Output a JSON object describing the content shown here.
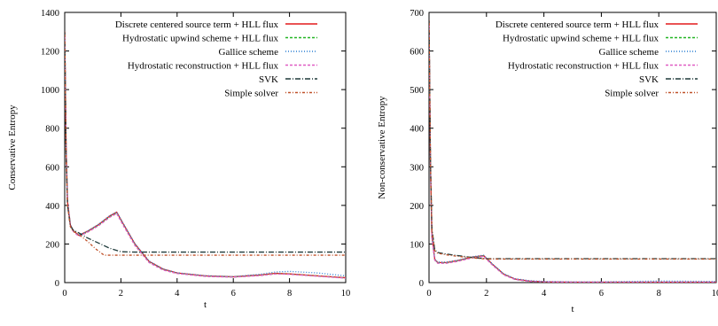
{
  "chart_data": [
    {
      "type": "line",
      "title": "",
      "xlabel": "t",
      "ylabel": "Conservative Entropy",
      "xlim": [
        0,
        10
      ],
      "ylim": [
        0,
        1400
      ],
      "xticks": [
        0,
        2,
        4,
        6,
        8,
        10
      ],
      "yticks": [
        0,
        200,
        400,
        600,
        800,
        1000,
        1200,
        1400
      ],
      "legend_position": "top-right",
      "grid": false,
      "series": [
        {
          "name": "Discrete centered source term + HLL flux",
          "color": "#e41a1c",
          "dash": "solid",
          "x": [
            0,
            0.05,
            0.1,
            0.2,
            0.3,
            0.5,
            0.8,
            1.2,
            1.6,
            1.85,
            2.1,
            2.5,
            3.0,
            3.5,
            4.0,
            5.0,
            6.0,
            7.0,
            7.5,
            8.0,
            9.0,
            10.0
          ],
          "y": [
            1300,
            700,
            420,
            300,
            270,
            245,
            265,
            300,
            345,
            365,
            300,
            200,
            110,
            70,
            50,
            35,
            30,
            40,
            48,
            45,
            35,
            25
          ]
        },
        {
          "name": "Hydrostatic upwind scheme + HLL flux",
          "color": "#22b522",
          "dash": "3,2",
          "x": [
            0,
            0.05,
            0.1,
            0.2,
            0.3,
            0.5,
            0.8,
            1.2,
            1.6,
            1.85,
            2.1,
            2.5,
            3.0,
            3.5,
            4.0,
            5.0,
            6.0,
            7.0,
            7.5,
            8.0,
            9.0,
            10.0
          ],
          "y": [
            1300,
            700,
            420,
            300,
            268,
            242,
            262,
            296,
            340,
            360,
            295,
            195,
            106,
            67,
            48,
            33,
            29,
            38,
            46,
            44,
            34,
            24
          ]
        },
        {
          "name": "Gallice scheme",
          "color": "#2a7fd4",
          "dash": "1,2",
          "x": [
            0,
            0.05,
            0.1,
            0.2,
            0.3,
            0.5,
            0.8,
            1.2,
            1.6,
            1.85,
            2.1,
            2.5,
            3.0,
            3.5,
            4.0,
            5.0,
            6.0,
            7.0,
            7.5,
            8.0,
            9.0,
            10.0
          ],
          "y": [
            1300,
            700,
            420,
            300,
            270,
            246,
            266,
            302,
            347,
            366,
            303,
            202,
            112,
            71,
            51,
            36,
            31,
            44,
            55,
            58,
            50,
            35
          ]
        },
        {
          "name": "Hydrostatic reconstruction + HLL flux",
          "color": "#e05cc4",
          "dash": "3,2",
          "x": [
            0,
            0.05,
            0.1,
            0.2,
            0.3,
            0.5,
            0.8,
            1.2,
            1.6,
            1.85,
            2.1,
            2.5,
            3.0,
            3.5,
            4.0,
            5.0,
            6.0,
            7.0,
            7.5,
            8.0,
            9.0,
            10.0
          ],
          "y": [
            1300,
            700,
            420,
            300,
            266,
            240,
            260,
            294,
            338,
            358,
            292,
            192,
            104,
            65,
            47,
            32,
            28,
            37,
            45,
            43,
            33,
            23
          ]
        },
        {
          "name": "SVK",
          "color": "#1e3a3a",
          "dash": "6,2,1,2",
          "x": [
            0,
            0.05,
            0.1,
            0.2,
            0.3,
            0.5,
            0.8,
            1.2,
            1.6,
            2.0,
            2.5,
            4.0,
            10.0
          ],
          "y": [
            1300,
            650,
            400,
            295,
            272,
            258,
            232,
            205,
            178,
            160,
            158,
            158,
            158
          ]
        },
        {
          "name": "Simple solver",
          "color": "#c0522a",
          "dash": "1,2,3,2",
          "x": [
            0,
            0.05,
            0.1,
            0.2,
            0.3,
            0.5,
            0.8,
            1.1,
            1.4,
            2.0,
            4.0,
            10.0
          ],
          "y": [
            1300,
            650,
            400,
            290,
            265,
            250,
            215,
            175,
            142,
            142,
            142,
            142
          ]
        }
      ]
    },
    {
      "type": "line",
      "title": "",
      "xlabel": "t",
      "ylabel": "Non-conservative Entropy",
      "xlim": [
        0,
        10
      ],
      "ylim": [
        0,
        700
      ],
      "xticks": [
        0,
        2,
        4,
        6,
        8,
        10
      ],
      "yticks": [
        0,
        100,
        200,
        300,
        400,
        500,
        600,
        700
      ],
      "legend_position": "top-right",
      "grid": false,
      "series": [
        {
          "name": "Discrete centered source term + HLL flux",
          "color": "#e41a1c",
          "dash": "solid",
          "x": [
            0,
            0.05,
            0.1,
            0.2,
            0.3,
            0.6,
            1.0,
            1.5,
            1.9,
            2.2,
            2.6,
            3.0,
            3.5,
            4.0,
            5.0,
            6.0,
            8.0,
            10.0
          ],
          "y": [
            680,
            300,
            120,
            60,
            52,
            52,
            57,
            66,
            70,
            48,
            22,
            9,
            4,
            2,
            1,
            1,
            1,
            1
          ]
        },
        {
          "name": "Hydrostatic upwind scheme + HLL flux",
          "color": "#22b522",
          "dash": "3,2",
          "x": [
            0,
            0.05,
            0.1,
            0.2,
            0.3,
            0.6,
            1.0,
            1.5,
            1.9,
            2.2,
            2.6,
            3.0,
            3.5,
            4.0,
            5.0,
            6.0,
            8.0,
            10.0
          ],
          "y": [
            680,
            300,
            118,
            59,
            51,
            51,
            56,
            65,
            69,
            47,
            21,
            8,
            3,
            2,
            1,
            1,
            1,
            1
          ]
        },
        {
          "name": "Gallice scheme",
          "color": "#2a7fd4",
          "dash": "1,2",
          "x": [
            0,
            0.05,
            0.1,
            0.2,
            0.3,
            0.6,
            1.0,
            1.5,
            1.9,
            2.2,
            2.6,
            3.0,
            3.5,
            4.0,
            5.0,
            6.0,
            8.0,
            10.0
          ],
          "y": [
            680,
            300,
            121,
            61,
            53,
            53,
            58,
            67,
            71,
            49,
            23,
            10,
            5,
            3,
            2,
            2,
            4,
            3
          ]
        },
        {
          "name": "Hydrostatic reconstruction + HLL flux",
          "color": "#e05cc4",
          "dash": "3,2",
          "x": [
            0,
            0.05,
            0.1,
            0.2,
            0.3,
            0.6,
            1.0,
            1.5,
            1.9,
            2.2,
            2.6,
            3.0,
            3.5,
            4.0,
            5.0,
            6.0,
            8.0,
            10.0
          ],
          "y": [
            680,
            300,
            117,
            58,
            50,
            50,
            55,
            64,
            68,
            46,
            20,
            8,
            3,
            2,
            1,
            1,
            1,
            1
          ]
        },
        {
          "name": "SVK",
          "color": "#1e3a3a",
          "dash": "6,2,1,2",
          "x": [
            0,
            0.05,
            0.1,
            0.2,
            0.3,
            0.6,
            1.0,
            1.5,
            2.0,
            3.0,
            10.0
          ],
          "y": [
            680,
            320,
            140,
            85,
            78,
            74,
            70,
            65,
            62,
            62,
            62
          ]
        },
        {
          "name": "Simple solver",
          "color": "#c0522a",
          "dash": "1,2,3,2",
          "x": [
            0,
            0.05,
            0.1,
            0.2,
            0.3,
            0.6,
            1.0,
            1.5,
            2.0,
            3.0,
            10.0
          ],
          "y": [
            680,
            315,
            135,
            82,
            76,
            72,
            68,
            64,
            61,
            61,
            61
          ]
        }
      ]
    }
  ]
}
